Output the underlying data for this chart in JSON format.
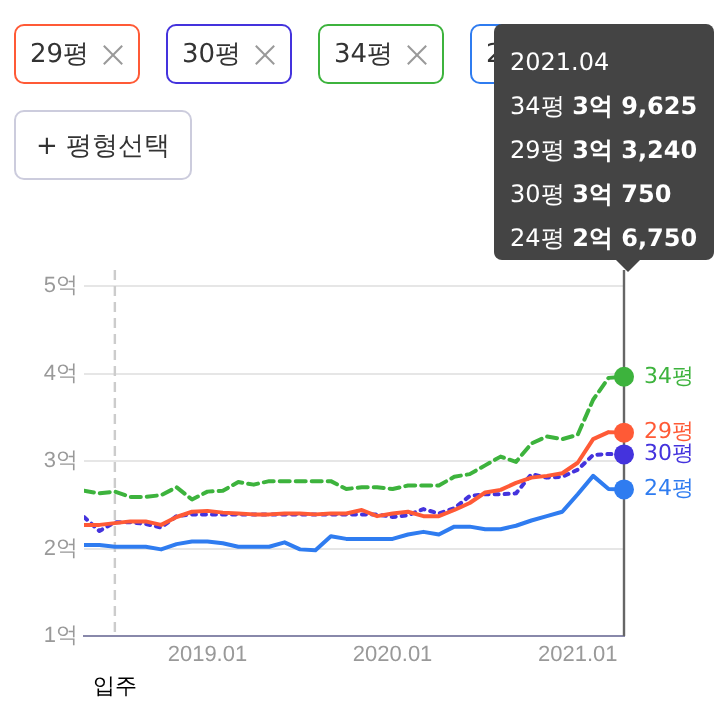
{
  "chart_data": {
    "type": "line",
    "x": [
      "2018-05",
      "2018-06",
      "2018-07",
      "2018-08",
      "2018-09",
      "2018-10",
      "2018-11",
      "2018-12",
      "2019-01",
      "2019-02",
      "2019-03",
      "2019-04",
      "2019-05",
      "2019-06",
      "2019-07",
      "2019-08",
      "2019-09",
      "2019-10",
      "2019-11",
      "2019-12",
      "2020-01",
      "2020-02",
      "2020-03",
      "2020-04",
      "2020-05",
      "2020-06",
      "2020-07",
      "2020-08",
      "2020-09",
      "2020-10",
      "2020-11",
      "2020-12",
      "2021-01",
      "2021-02",
      "2021-03",
      "2021-04"
    ],
    "series": [
      {
        "name": "29평",
        "color": "#ff5a36",
        "line_style": "solid",
        "values": [
          2.27,
          2.27,
          2.29,
          2.31,
          2.31,
          2.27,
          2.36,
          2.42,
          2.43,
          2.41,
          2.4,
          2.39,
          2.39,
          2.4,
          2.4,
          2.39,
          2.4,
          2.4,
          2.44,
          2.37,
          2.4,
          2.42,
          2.37,
          2.37,
          2.44,
          2.52,
          2.64,
          2.67,
          2.75,
          2.81,
          2.83,
          2.86,
          2.98,
          3.25,
          3.33,
          3.324
        ]
      },
      {
        "name": "30평",
        "color": "#4433dd",
        "line_style": "dotted",
        "values": [
          2.36,
          2.2,
          2.3,
          2.3,
          2.28,
          2.24,
          2.37,
          2.39,
          2.39,
          2.39,
          2.39,
          2.39,
          2.39,
          2.39,
          2.39,
          2.39,
          2.39,
          2.39,
          2.39,
          2.39,
          2.36,
          2.38,
          2.45,
          2.4,
          2.46,
          2.6,
          2.62,
          2.62,
          2.63,
          2.85,
          2.81,
          2.82,
          2.9,
          3.07,
          3.08,
          3.075
        ]
      },
      {
        "name": "34평",
        "color": "#3db33d",
        "line_style": "dashed",
        "values": [
          2.66,
          2.63,
          2.65,
          2.59,
          2.59,
          2.61,
          2.7,
          2.56,
          2.65,
          2.66,
          2.76,
          2.73,
          2.77,
          2.77,
          2.77,
          2.77,
          2.77,
          2.68,
          2.7,
          2.7,
          2.68,
          2.72,
          2.72,
          2.72,
          2.82,
          2.85,
          2.95,
          3.05,
          2.99,
          3.2,
          3.28,
          3.25,
          3.3,
          3.7,
          3.95,
          3.9625
        ]
      },
      {
        "name": "24평",
        "color": "#2f7cf0",
        "line_style": "solid",
        "values": [
          2.04,
          2.04,
          2.02,
          2.02,
          2.02,
          1.99,
          2.05,
          2.08,
          2.08,
          2.06,
          2.02,
          2.02,
          2.02,
          2.07,
          1.99,
          1.98,
          2.14,
          2.11,
          2.11,
          2.11,
          2.11,
          2.16,
          2.19,
          2.16,
          2.25,
          2.25,
          2.22,
          2.22,
          2.26,
          2.32,
          2.37,
          2.42,
          2.62,
          2.83,
          2.68,
          2.675
        ]
      }
    ],
    "xlim": [
      "2018-05",
      "2021-04"
    ],
    "xticks": [
      {
        "value": "2019-01",
        "label": "2019.01"
      },
      {
        "value": "2020-01",
        "label": "2020.01"
      },
      {
        "value": "2021-01",
        "label": "2021.01"
      }
    ],
    "ylim": [
      1,
      5
    ],
    "yticks": [
      {
        "value": 1,
        "label": "1억"
      },
      {
        "value": 2,
        "label": "2억"
      },
      {
        "value": 3,
        "label": "3억"
      },
      {
        "value": 4,
        "label": "4억"
      },
      {
        "value": 5,
        "label": "5억"
      }
    ],
    "grid": "y",
    "legend": "right",
    "marker": "none",
    "ref_lines": [
      {
        "axis": "x",
        "value": "2018-07",
        "label": "입주",
        "color": "#cccccc",
        "line_style": "dashed"
      },
      {
        "axis": "x",
        "value": "2021-04",
        "color": "#666666",
        "line_style": "solid"
      }
    ],
    "annotations": [
      "+ 평형선택",
      "2021.04",
      "34평 3억 9,625",
      "29평 3억 3,240",
      "30평 3억 750",
      "24평 2억 6,750"
    ]
  }
}
